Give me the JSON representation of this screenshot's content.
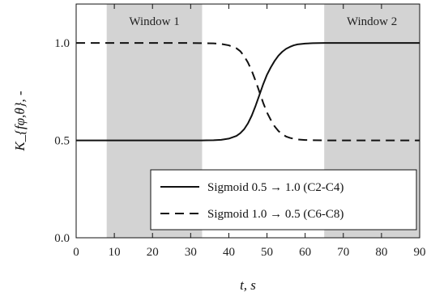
{
  "chart_data": {
    "type": "line",
    "xlabel": "t, s",
    "ylabel": "K_{fφ,θ}, -",
    "xlim": [
      0,
      90
    ],
    "ylim": [
      0.0,
      1.2
    ],
    "x_ticks": [
      0,
      10,
      20,
      30,
      40,
      50,
      60,
      70,
      80,
      90
    ],
    "x_tick_labels": [
      "0",
      "10",
      "20",
      "30",
      "40",
      "50",
      "60",
      "70",
      "80",
      "90"
    ],
    "y_ticks": [
      0.0,
      0.5,
      1.0
    ],
    "y_tick_labels": [
      "0.0",
      "0.5",
      "1.0"
    ],
    "grid": false,
    "legend_position": "lower-right",
    "shaded_regions": [
      {
        "label": "Window 1",
        "x_start": 8,
        "x_end": 33,
        "color": "#d3d3d3"
      },
      {
        "label": "Window 2",
        "x_start": 65,
        "x_end": 90,
        "color": "#d3d3d3"
      }
    ],
    "series": [
      {
        "name": "Sigmoid 0.5 → 1.0 (C2-C4)",
        "line_style": "solid",
        "color": "#111111",
        "x": [
          0,
          5,
          10,
          15,
          20,
          25,
          30,
          33,
          36,
          38,
          40,
          42,
          43,
          44,
          45,
          46,
          47,
          48,
          49,
          50,
          51,
          52,
          53,
          54,
          55,
          56,
          57,
          58,
          60,
          62,
          65,
          70,
          75,
          80,
          85,
          90
        ],
        "values": [
          0.5,
          0.5,
          0.5,
          0.5,
          0.5,
          0.5,
          0.5,
          0.5,
          0.501,
          0.503,
          0.509,
          0.523,
          0.537,
          0.557,
          0.587,
          0.627,
          0.677,
          0.732,
          0.788,
          0.837,
          0.875,
          0.908,
          0.935,
          0.955,
          0.97,
          0.98,
          0.988,
          0.993,
          0.997,
          0.999,
          1.0,
          1.0,
          1.0,
          1.0,
          1.0,
          1.0
        ]
      },
      {
        "name": "Sigmoid 1.0 → 0.5 (C6-C8)",
        "line_style": "dashed",
        "color": "#111111",
        "x": [
          0,
          5,
          10,
          15,
          20,
          25,
          30,
          33,
          36,
          38,
          40,
          42,
          43,
          44,
          45,
          46,
          47,
          48,
          49,
          50,
          51,
          52,
          53,
          54,
          55,
          56,
          57,
          58,
          60,
          62,
          65,
          70,
          75,
          80,
          85,
          90
        ],
        "values": [
          1.0,
          1.0,
          1.0,
          1.0,
          1.0,
          1.0,
          1.0,
          0.999,
          0.998,
          0.995,
          0.988,
          0.973,
          0.958,
          0.933,
          0.9,
          0.858,
          0.806,
          0.75,
          0.693,
          0.643,
          0.605,
          0.572,
          0.548,
          0.532,
          0.52,
          0.513,
          0.508,
          0.505,
          0.502,
          0.501,
          0.5,
          0.5,
          0.5,
          0.5,
          0.5,
          0.5
        ]
      }
    ]
  }
}
